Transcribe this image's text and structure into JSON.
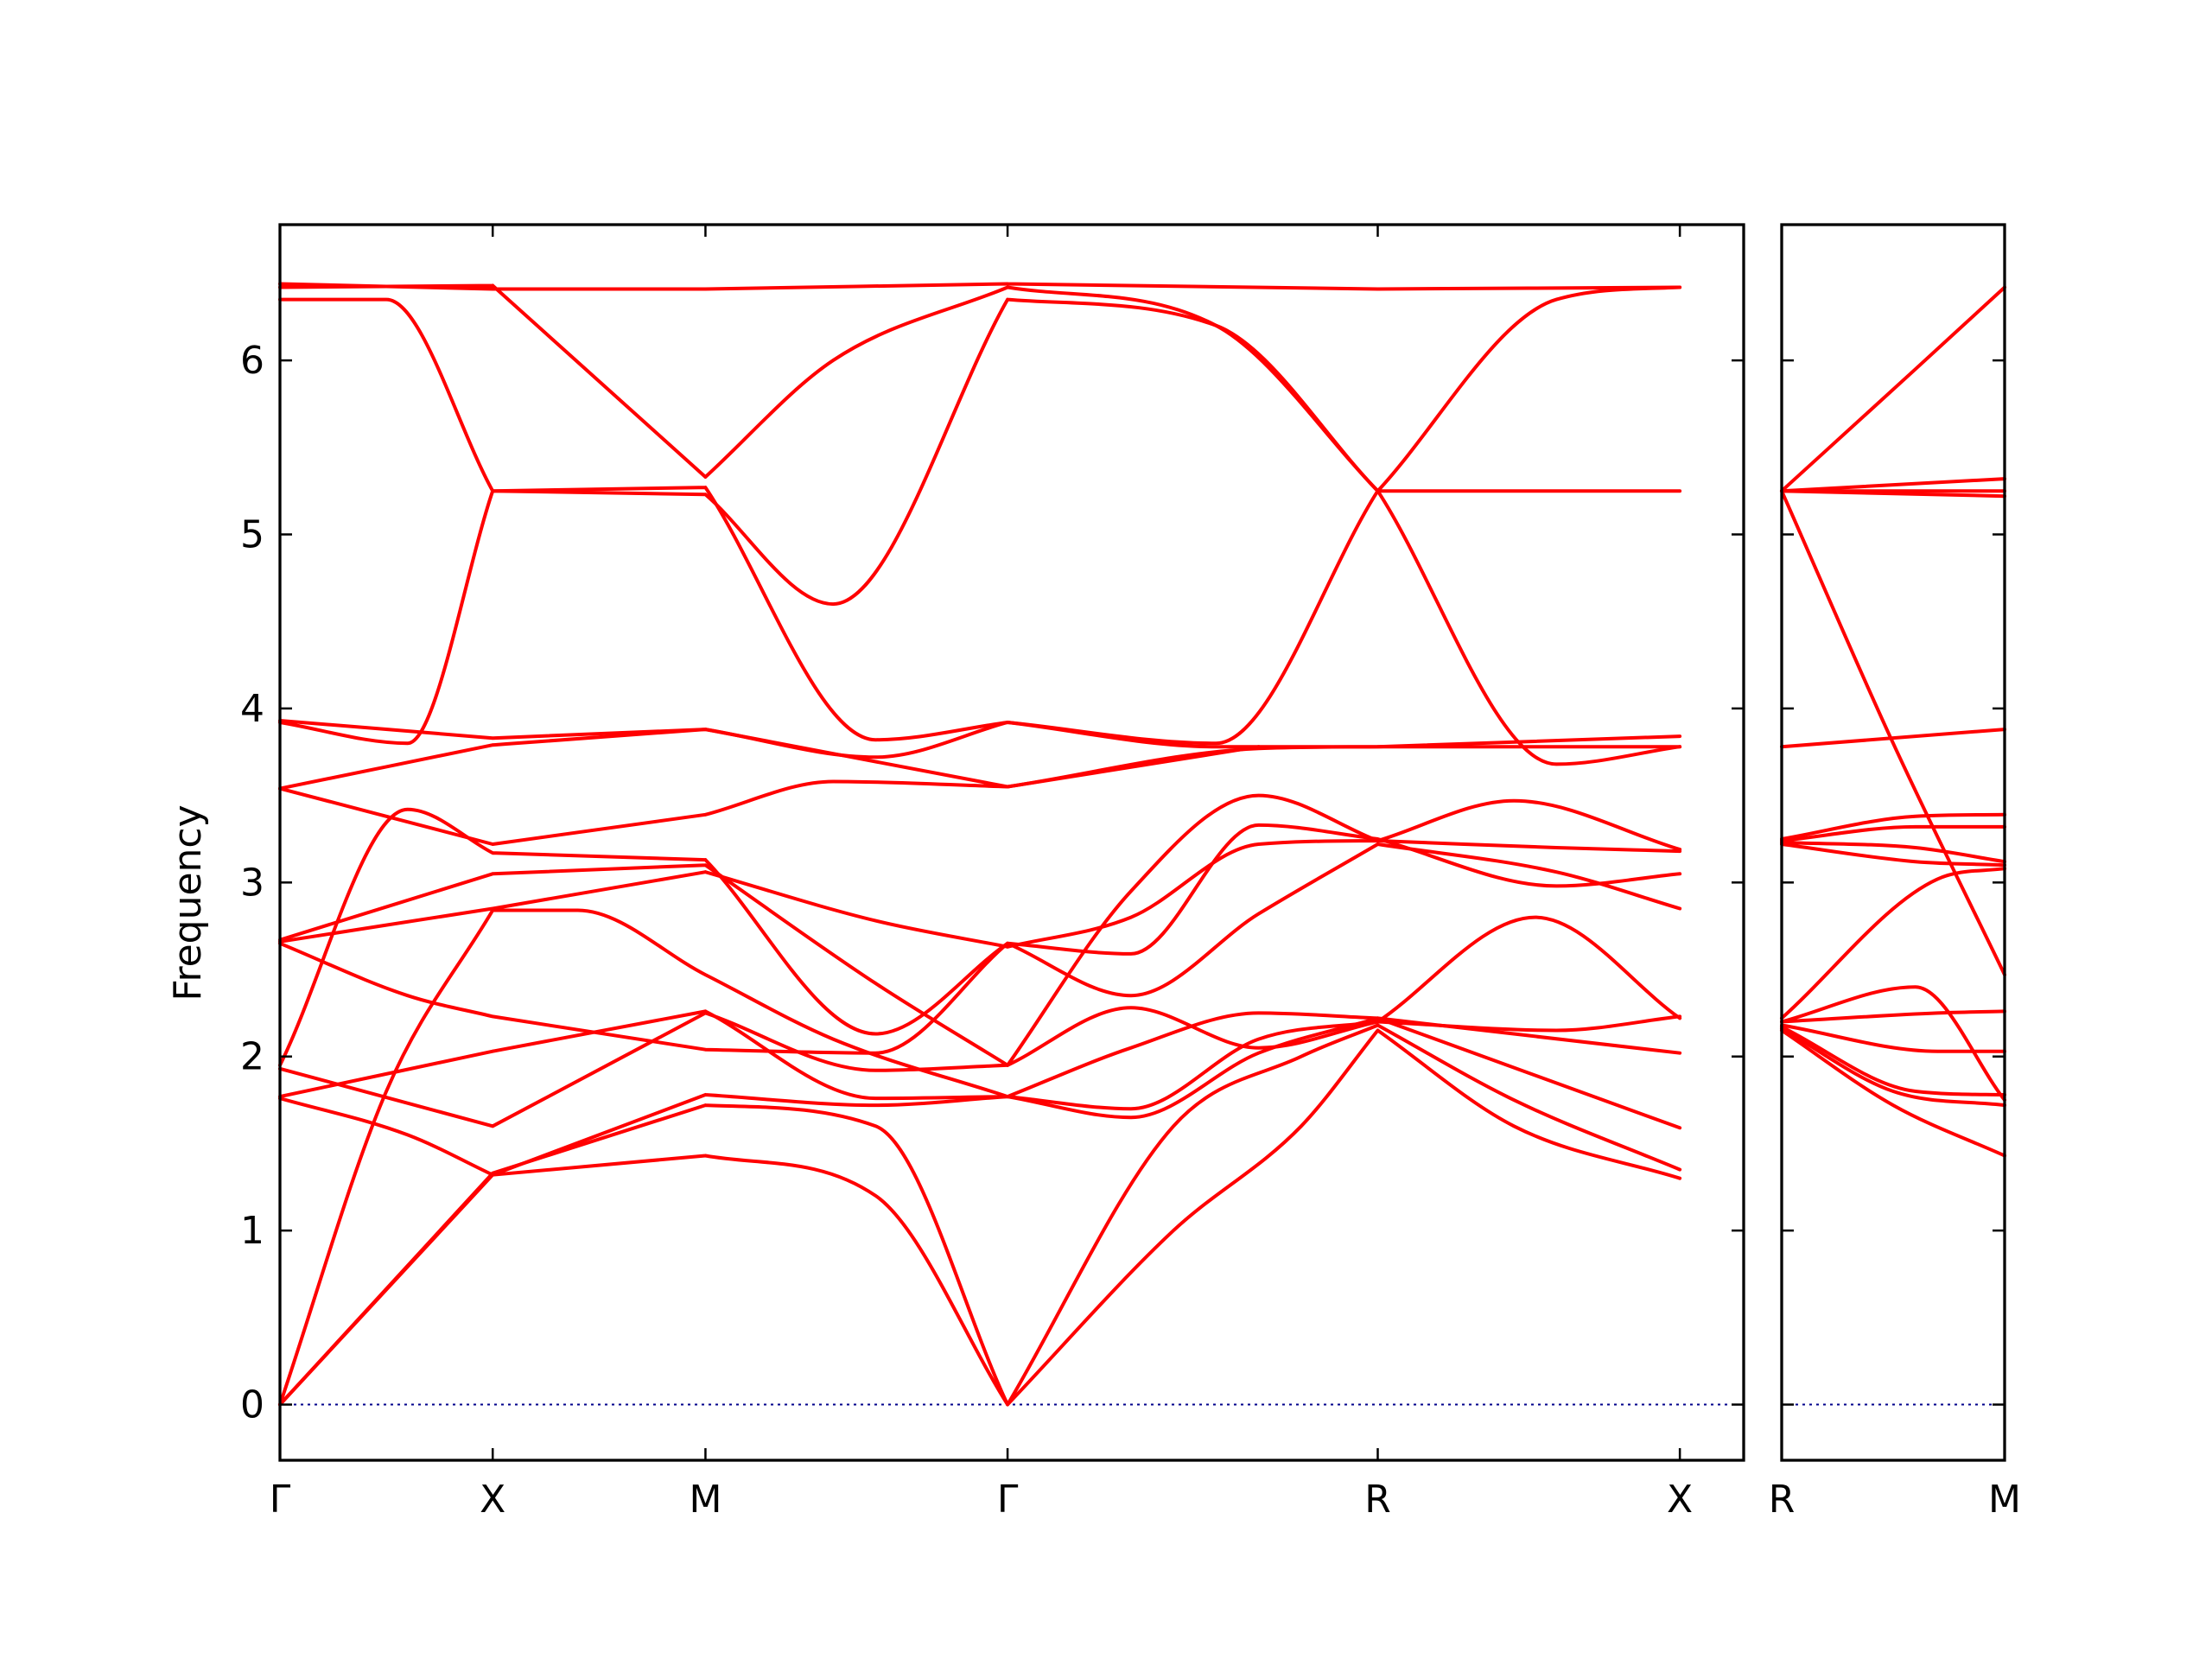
{
  "chart_data": {
    "type": "line",
    "ylabel": "Frequency",
    "ylim": [
      -0.32,
      6.78
    ],
    "y_ticks": [
      0,
      1,
      2,
      3,
      4,
      5,
      6
    ],
    "grid": false,
    "band_color": "#ff0000",
    "zero_line_color": "#00008b",
    "panels": [
      {
        "name": "left-panel",
        "xlim": [
          0,
          3.44
        ],
        "x_ticks": [
          {
            "x": 0.0,
            "label": "Γ"
          },
          {
            "x": 0.5,
            "label": "X"
          },
          {
            "x": 1.0,
            "label": "M"
          },
          {
            "x": 1.71,
            "label": "Γ"
          },
          {
            "x": 2.58,
            "label": "R"
          },
          {
            "x": 3.29,
            "label": "X"
          }
        ],
        "nodes": [
          0.0,
          0.5,
          1.0,
          1.71,
          2.58,
          3.29
        ],
        "bands": [
          [
            [
              0,
              0
            ],
            [
              0.5,
              1.32
            ],
            [
              1.0,
              1.43
            ],
            [
              1.4,
              1.2
            ],
            [
              1.71,
              0
            ],
            [
              2.1,
              1.0
            ],
            [
              2.4,
              1.6
            ],
            [
              2.58,
              2.15
            ],
            [
              2.9,
              1.6
            ],
            [
              3.29,
              1.3
            ]
          ],
          [
            [
              0,
              0
            ],
            [
              0.5,
              1.33
            ],
            [
              1.0,
              1.72
            ],
            [
              1.4,
              1.6
            ],
            [
              1.71,
              0
            ],
            [
              2.1,
              1.6
            ],
            [
              2.4,
              2.0
            ],
            [
              2.58,
              2.18
            ],
            [
              2.9,
              1.75
            ],
            [
              3.29,
              1.35
            ]
          ],
          [
            [
              0,
              0
            ],
            [
              0.25,
              1.8
            ],
            [
              0.5,
              2.84
            ],
            [
              0.7,
              2.84
            ],
            [
              1.0,
              2.47
            ],
            [
              1.3,
              2.1
            ],
            [
              1.71,
              1.77
            ],
            [
              2.0,
              1.7
            ],
            [
              2.3,
              2.1
            ],
            [
              2.58,
              2.2
            ],
            [
              2.95,
              2.8
            ],
            [
              3.29,
              2.22
            ]
          ],
          [
            [
              0,
              1.76
            ],
            [
              0.3,
              1.55
            ],
            [
              0.5,
              1.32
            ],
            [
              1.0,
              1.78
            ],
            [
              1.4,
              1.72
            ],
            [
              1.71,
              1.77
            ],
            [
              2.0,
              1.65
            ],
            [
              2.3,
              2.02
            ],
            [
              2.58,
              2.22
            ],
            [
              3.29,
              1.59
            ]
          ],
          [
            [
              0,
              1.77
            ],
            [
              0.5,
              2.03
            ],
            [
              1.0,
              2.26
            ],
            [
              1.4,
              1.76
            ],
            [
              1.71,
              1.77
            ],
            [
              2.0,
              2.05
            ],
            [
              2.3,
              2.25
            ],
            [
              2.58,
              2.22
            ],
            [
              3.29,
              2.02
            ]
          ],
          [
            [
              0,
              1.93
            ],
            [
              0.5,
              1.6
            ],
            [
              1.0,
              2.25
            ],
            [
              1.4,
              1.92
            ],
            [
              1.71,
              1.95
            ],
            [
              2.0,
              2.28
            ],
            [
              2.3,
              2.05
            ],
            [
              2.58,
              2.2
            ],
            [
              3.0,
              2.15
            ],
            [
              3.29,
              2.23
            ]
          ],
          [
            [
              0,
              1.95
            ],
            [
              0.3,
              3.42
            ],
            [
              0.5,
              3.17
            ],
            [
              1.0,
              3.13
            ],
            [
              1.4,
              2.13
            ],
            [
              1.71,
              2.65
            ],
            [
              2.0,
              2.35
            ],
            [
              2.3,
              2.82
            ],
            [
              2.58,
              3.22
            ],
            [
              3.0,
              3.06
            ],
            [
              3.29,
              2.85
            ]
          ],
          [
            [
              0,
              2.65
            ],
            [
              0.3,
              2.35
            ],
            [
              0.5,
              2.23
            ],
            [
              1.0,
              2.04
            ],
            [
              1.4,
              2.02
            ],
            [
              1.71,
              2.65
            ],
            [
              2.0,
              2.59
            ],
            [
              2.3,
              3.33
            ],
            [
              2.58,
              3.25
            ],
            [
              3.0,
              2.98
            ],
            [
              3.29,
              3.05
            ]
          ],
          [
            [
              0,
              2.66
            ],
            [
              0.5,
              2.85
            ],
            [
              1.0,
              3.06
            ],
            [
              1.4,
              2.78
            ],
            [
              1.71,
              2.63
            ],
            [
              2.0,
              2.8
            ],
            [
              2.3,
              3.22
            ],
            [
              2.58,
              3.24
            ],
            [
              3.0,
              3.2
            ],
            [
              3.29,
              3.18
            ]
          ],
          [
            [
              0,
              2.67
            ],
            [
              0.5,
              3.05
            ],
            [
              1.0,
              3.1
            ],
            [
              1.4,
              2.42
            ],
            [
              1.71,
              1.95
            ],
            [
              2.0,
              2.95
            ],
            [
              2.3,
              3.5
            ],
            [
              2.58,
              3.24
            ],
            [
              2.9,
              3.47
            ],
            [
              3.29,
              3.19
            ]
          ],
          [
            [
              0,
              3.54
            ],
            [
              0.5,
              3.22
            ],
            [
              1.0,
              3.39
            ],
            [
              1.3,
              3.58
            ],
            [
              1.71,
              3.55
            ],
            [
              2.3,
              3.78
            ],
            [
              3.29,
              3.83
            ]
          ],
          [
            [
              0,
              3.54
            ],
            [
              0.5,
              3.79
            ],
            [
              1.0,
              3.88
            ],
            [
              1.71,
              3.55
            ],
            [
              2.3,
              3.77
            ],
            [
              2.58,
              3.78
            ],
            [
              3.29,
              3.84
            ]
          ],
          [
            [
              0,
              3.92
            ],
            [
              0.3,
              3.8
            ],
            [
              0.5,
              5.25
            ],
            [
              1.0,
              5.27
            ],
            [
              1.4,
              3.82
            ],
            [
              1.71,
              3.92
            ],
            [
              2.2,
              3.8
            ],
            [
              2.58,
              5.25
            ],
            [
              3.0,
              3.68
            ],
            [
              3.29,
              3.78
            ]
          ],
          [
            [
              0,
              3.93
            ],
            [
              0.5,
              3.83
            ],
            [
              1.0,
              3.88
            ],
            [
              1.4,
              3.72
            ],
            [
              1.71,
              3.92
            ],
            [
              2.2,
              3.78
            ],
            [
              2.58,
              3.78
            ],
            [
              3.29,
              3.78
            ]
          ],
          [
            [
              0,
              6.35
            ],
            [
              0.25,
              6.35
            ],
            [
              0.5,
              5.25
            ],
            [
              1.0,
              5.23
            ],
            [
              1.3,
              4.6
            ],
            [
              1.71,
              6.35
            ],
            [
              2.2,
              6.2
            ],
            [
              2.58,
              5.25
            ],
            [
              3.0,
              6.35
            ],
            [
              3.29,
              6.42
            ]
          ],
          [
            [
              0,
              6.42
            ],
            [
              0.5,
              6.43
            ],
            [
              1.0,
              5.33
            ],
            [
              1.3,
              6.0
            ],
            [
              1.71,
              6.42
            ],
            [
              2.2,
              6.2
            ],
            [
              2.58,
              5.25
            ],
            [
              2.9,
              5.25
            ],
            [
              3.29,
              5.25
            ]
          ],
          [
            [
              0,
              6.44
            ],
            [
              0.5,
              6.41
            ],
            [
              1.0,
              6.41
            ],
            [
              1.71,
              6.44
            ],
            [
              2.58,
              6.41
            ],
            [
              3.29,
              6.42
            ]
          ]
        ]
      },
      {
        "name": "right-panel",
        "xlim": [
          0,
          0.5
        ],
        "x_ticks": [
          {
            "x": 0.0,
            "label": "R"
          },
          {
            "x": 0.5,
            "label": "M"
          }
        ],
        "nodes": [
          0.0,
          0.5
        ],
        "bands": [
          [
            [
              0,
              2.15
            ],
            [
              0.25,
              1.72
            ],
            [
              0.5,
              1.43
            ]
          ],
          [
            [
              0,
              2.16
            ],
            [
              0.25,
              1.8
            ],
            [
              0.5,
              1.72
            ]
          ],
          [
            [
              0,
              2.17
            ],
            [
              0.3,
              1.8
            ],
            [
              0.5,
              1.78
            ]
          ],
          [
            [
              0,
              2.18
            ],
            [
              0.35,
              2.03
            ],
            [
              0.5,
              2.03
            ]
          ],
          [
            [
              0,
              2.2
            ],
            [
              0.35,
              2.25
            ],
            [
              0.5,
              2.26
            ]
          ],
          [
            [
              0,
              2.2
            ],
            [
              0.3,
              2.4
            ],
            [
              0.5,
              1.75
            ]
          ],
          [
            [
              0,
              2.22
            ],
            [
              0.35,
              3.02
            ],
            [
              0.5,
              3.08
            ]
          ],
          [
            [
              0,
              3.22
            ],
            [
              0.3,
              3.12
            ],
            [
              0.5,
              3.1
            ]
          ],
          [
            [
              0,
              3.23
            ],
            [
              0.3,
              3.2
            ],
            [
              0.5,
              3.12
            ]
          ],
          [
            [
              0,
              3.24
            ],
            [
              0.3,
              3.32
            ],
            [
              0.5,
              3.32
            ]
          ],
          [
            [
              0,
              3.25
            ],
            [
              0.3,
              3.38
            ],
            [
              0.5,
              3.39
            ]
          ],
          [
            [
              0,
              3.78
            ],
            [
              0.5,
              3.88
            ]
          ],
          [
            [
              0,
              5.25
            ],
            [
              0.5,
              5.32
            ]
          ],
          [
            [
              0,
              5.25
            ],
            [
              0.5,
              5.25
            ]
          ],
          [
            [
              0,
              5.25
            ],
            [
              0.5,
              5.22
            ]
          ],
          [
            [
              0,
              5.25
            ],
            [
              0.25,
              3.8
            ],
            [
              0.5,
              2.47
            ]
          ],
          [
            [
              0,
              5.25
            ],
            [
              0.3,
              5.95
            ],
            [
              0.5,
              6.42
            ]
          ]
        ]
      }
    ]
  }
}
